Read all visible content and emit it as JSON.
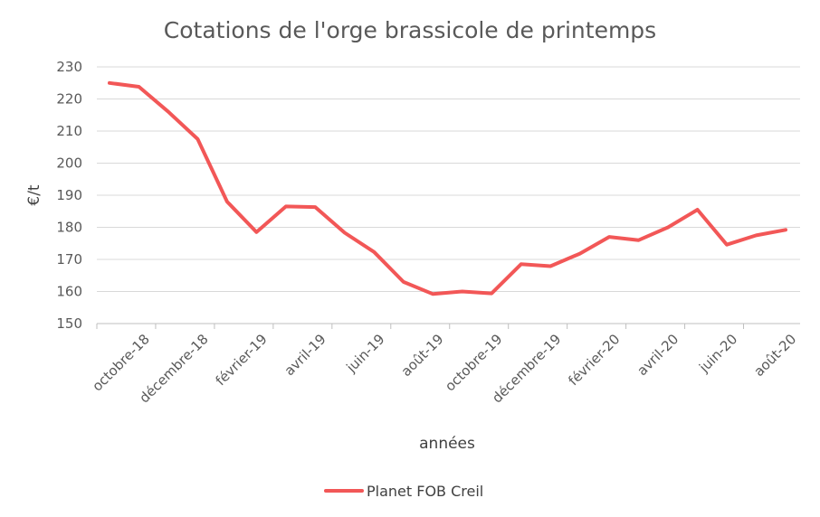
{
  "chart_data": {
    "type": "line",
    "title": "Cotations de l'orge brassicole de printemps",
    "xlabel": "années",
    "ylabel": "€/t",
    "ylim": [
      150,
      230
    ],
    "yticks": [
      150,
      160,
      170,
      180,
      190,
      200,
      210,
      220,
      230
    ],
    "grid": true,
    "legend": "bottom",
    "x_tick_labels": [
      "octobre-18",
      "décembre-18",
      "février-19",
      "avril-19",
      "juin-19",
      "août-19",
      "octobre-19",
      "décembre-19",
      "février-20",
      "avril-20",
      "juin-20",
      "août-20"
    ],
    "series": [
      {
        "name": "Planet FOB Creil",
        "color": "#f25757",
        "values": [
          225,
          223.8,
          216,
          207.5,
          188,
          178.5,
          186.5,
          186.3,
          178.3,
          172.3,
          163,
          159.2,
          160,
          159.4,
          168.5,
          167.9,
          171.8,
          177,
          176,
          180,
          185.5,
          174.6,
          177.5,
          179.2
        ]
      }
    ]
  }
}
